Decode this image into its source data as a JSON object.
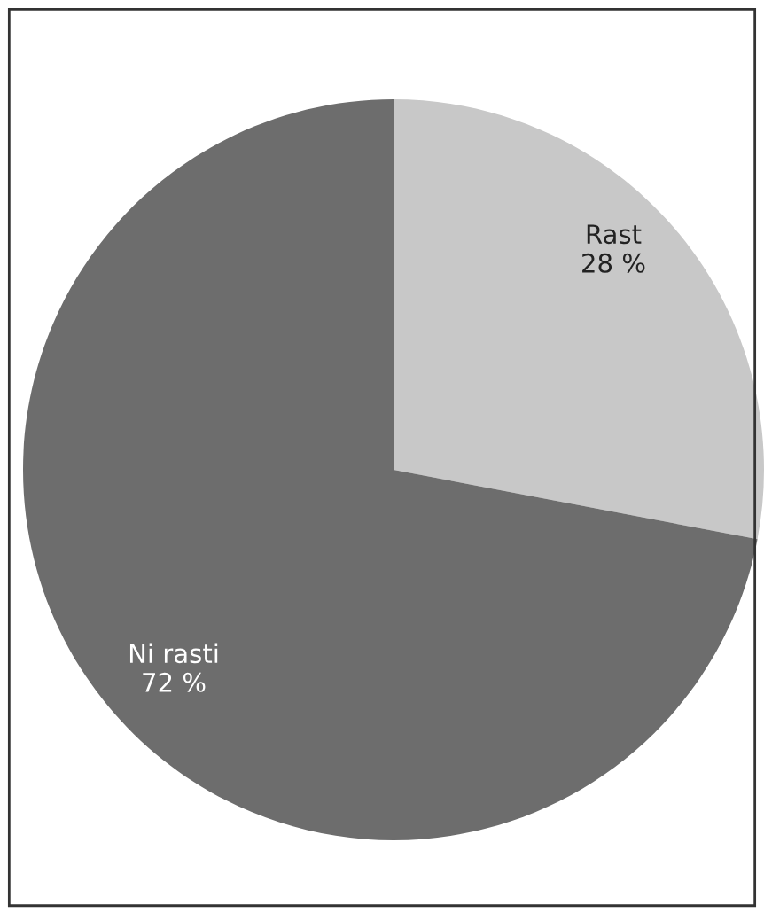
{
  "chart_data": {
    "type": "pie",
    "categories": [
      "Rast",
      "Ni rasti"
    ],
    "values": [
      28,
      72
    ],
    "colors": [
      "#c8c8c8",
      "#6d6d6d"
    ],
    "value_labels": [
      "28 %",
      "72 %"
    ]
  }
}
